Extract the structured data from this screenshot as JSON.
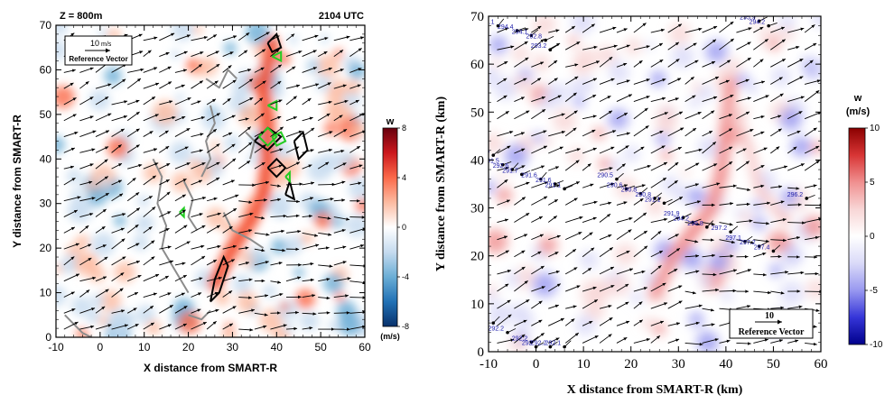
{
  "chart_data": [
    {
      "type": "heatmap",
      "panel": "left",
      "title_left": "Z = 800m",
      "title_right": "2104 UTC",
      "xlabel": "X distance from SMART-R",
      "ylabel": "Y distance from SMART-R",
      "xlim": [
        -10,
        60
      ],
      "ylim": [
        0,
        70
      ],
      "xticks": [
        "-10",
        "0",
        "10",
        "20",
        "30",
        "40",
        "50",
        "60"
      ],
      "yticks": [
        "0",
        "10",
        "20",
        "30",
        "40",
        "50",
        "60",
        "70"
      ],
      "reference_vector": {
        "value_label": "10",
        "unit": "m/s",
        "caption": "Reference Vector"
      },
      "colorbar": {
        "title": "w",
        "unit": "(m/s)",
        "range": [
          -8,
          8
        ],
        "ticks": [
          "8",
          "4",
          "0",
          "-4",
          "-8"
        ],
        "colors": [
          "#08306b",
          "#2171b5",
          "#6baed6",
          "#c6dbef",
          "#ffffff",
          "#fcbba1",
          "#fb6a4a",
          "#cb181d",
          "#67000d"
        ]
      },
      "colors": {
        "updraft": "#e8604a",
        "downdraft": "#6aaed6",
        "contour_gray": "#8c8c8c",
        "contour_black": "#000000",
        "contour_green": "#22cc22"
      },
      "convergence_band": {
        "points": [
          [
            26,
            12
          ],
          [
            30,
            20
          ],
          [
            34,
            26
          ],
          [
            37,
            32
          ],
          [
            38,
            40
          ],
          [
            38,
            48
          ],
          [
            37,
            56
          ],
          [
            39,
            66
          ]
        ],
        "peak_w": 5
      }
    },
    {
      "type": "heatmap",
      "panel": "right",
      "xlabel": "X distance from SMART-R (km)",
      "ylabel": "Y distance from SMART-R (km)",
      "xlim": [
        -10,
        60
      ],
      "ylim": [
        0,
        70
      ],
      "xticks": [
        "-10",
        "0",
        "10",
        "20",
        "30",
        "40",
        "50",
        "60"
      ],
      "yticks": [
        "0",
        "10",
        "20",
        "30",
        "40",
        "50",
        "60",
        "70"
      ],
      "reference_vector": {
        "value_label": "10",
        "caption": "Reference Vector"
      },
      "colorbar": {
        "title": "w",
        "unit": "(m/s)",
        "range": [
          -10,
          10
        ],
        "ticks": [
          "10",
          "5",
          "0",
          "-5",
          "-10"
        ],
        "colors": [
          "#00008b",
          "#3535d8",
          "#9898f0",
          "#dadaf8",
          "#ffffff",
          "#f8d6d6",
          "#f09090",
          "#d83535",
          "#8b0000"
        ]
      },
      "stations": [
        {
          "label": "294.1",
          "x": -8,
          "y": 68
        },
        {
          "label": "294.4",
          "x": -4,
          "y": 67
        },
        {
          "label": "294.1",
          "x": -1,
          "y": 66
        },
        {
          "label": "292.8",
          "x": 2,
          "y": 65
        },
        {
          "label": "293.2",
          "x": 3,
          "y": 63
        },
        {
          "label": "295.9",
          "x": 47,
          "y": 69
        },
        {
          "label": "294.2",
          "x": 49,
          "y": 68
        },
        {
          "label": "291.5",
          "x": -9,
          "y": 41
        },
        {
          "label": "291.5",
          "x": -7,
          "y": 39
        },
        {
          "label": "292.6",
          "x": -5,
          "y": 38
        },
        {
          "label": "291.7",
          "x": -3,
          "y": 37
        },
        {
          "label": "291.6",
          "x": 1,
          "y": 36
        },
        {
          "label": "291.6",
          "x": 4,
          "y": 35
        },
        {
          "label": "291.1",
          "x": 6,
          "y": 34
        },
        {
          "label": "290.5",
          "x": 17,
          "y": 36
        },
        {
          "label": "290.6",
          "x": 19,
          "y": 34
        },
        {
          "label": "290.8",
          "x": 22,
          "y": 33
        },
        {
          "label": "290.8",
          "x": 25,
          "y": 32
        },
        {
          "label": "291.1",
          "x": 27,
          "y": 31
        },
        {
          "label": "291.9",
          "x": 31,
          "y": 28
        },
        {
          "label": "294.2",
          "x": 33,
          "y": 27
        },
        {
          "label": "296.8",
          "x": 36,
          "y": 26
        },
        {
          "label": "297.2",
          "x": 41,
          "y": 25
        },
        {
          "label": "297.1",
          "x": 44,
          "y": 23
        },
        {
          "label": "297.2",
          "x": 47,
          "y": 22
        },
        {
          "label": "297.4",
          "x": 50,
          "y": 21
        },
        {
          "label": "296.2",
          "x": 57,
          "y": 32
        },
        {
          "label": "292.1",
          "x": -9,
          "y": 6
        },
        {
          "label": "292.2",
          "x": -6,
          "y": 4
        },
        {
          "label": "292.2",
          "x": -1,
          "y": 2
        },
        {
          "label": "292",
          "x": 0,
          "y": 1
        },
        {
          "label": "292.2",
          "x": 3,
          "y": 1
        },
        {
          "label": "292.1",
          "x": 6,
          "y": 1
        }
      ],
      "convergence_band": {
        "points": [
          [
            25,
            12
          ],
          [
            29,
            20
          ],
          [
            33,
            25
          ],
          [
            37,
            30
          ],
          [
            39,
            37
          ],
          [
            40,
            46
          ],
          [
            41,
            56
          ]
        ],
        "peak_w": 6
      }
    }
  ]
}
